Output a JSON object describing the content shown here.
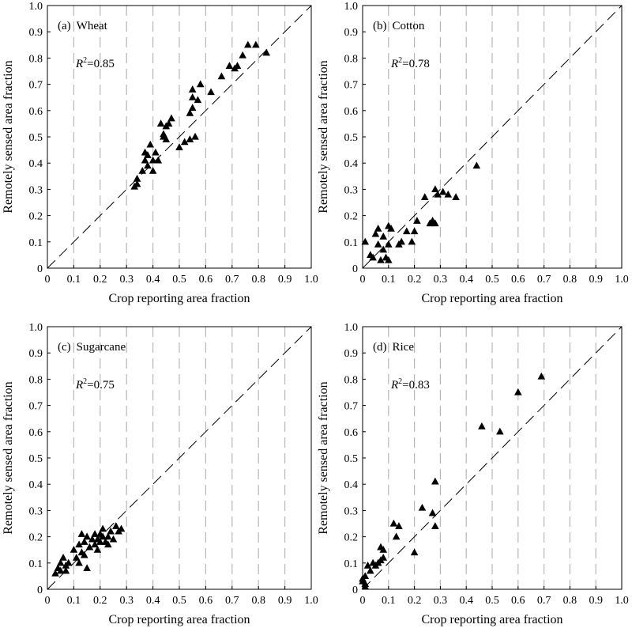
{
  "chart_data": [
    {
      "type": "scatter",
      "panel_label": "(a)",
      "title": "Wheat",
      "annotation": {
        "symbol": "R",
        "superscript": "2",
        "value": "=0.85"
      },
      "xlabel": "Crop reporting area fraction",
      "ylabel": "Remotely sensed area fraction",
      "xlim": [
        0,
        1.0
      ],
      "ylim": [
        0,
        1.0
      ],
      "xticks": [
        "0",
        "0.1",
        "0.2",
        "0.3",
        "0.4",
        "0.5",
        "0.6",
        "0.7",
        "0.8",
        "0.9",
        "1.0"
      ],
      "yticks": [
        "0",
        "0.1",
        "0.2",
        "0.3",
        "0.4",
        "0.5",
        "0.6",
        "0.7",
        "0.8",
        "0.9",
        "1.0"
      ],
      "grid": "vertical-dashed",
      "reference_line": "1:1 dashed",
      "marker": "triangle",
      "points": [
        [
          0.33,
          0.31
        ],
        [
          0.34,
          0.32
        ],
        [
          0.34,
          0.34
        ],
        [
          0.36,
          0.37
        ],
        [
          0.37,
          0.41
        ],
        [
          0.37,
          0.44
        ],
        [
          0.38,
          0.39
        ],
        [
          0.38,
          0.43
        ],
        [
          0.39,
          0.47
        ],
        [
          0.4,
          0.37
        ],
        [
          0.4,
          0.41
        ],
        [
          0.41,
          0.44
        ],
        [
          0.42,
          0.41
        ],
        [
          0.43,
          0.55
        ],
        [
          0.44,
          0.5
        ],
        [
          0.44,
          0.51
        ],
        [
          0.45,
          0.49
        ],
        [
          0.45,
          0.54
        ],
        [
          0.46,
          0.55
        ],
        [
          0.47,
          0.57
        ],
        [
          0.5,
          0.46
        ],
        [
          0.52,
          0.48
        ],
        [
          0.54,
          0.49
        ],
        [
          0.54,
          0.59
        ],
        [
          0.55,
          0.61
        ],
        [
          0.55,
          0.65
        ],
        [
          0.55,
          0.68
        ],
        [
          0.56,
          0.5
        ],
        [
          0.57,
          0.64
        ],
        [
          0.58,
          0.7
        ],
        [
          0.62,
          0.67
        ],
        [
          0.66,
          0.73
        ],
        [
          0.69,
          0.77
        ],
        [
          0.71,
          0.76
        ],
        [
          0.72,
          0.77
        ],
        [
          0.74,
          0.81
        ],
        [
          0.76,
          0.85
        ],
        [
          0.79,
          0.85
        ],
        [
          0.83,
          0.82
        ]
      ]
    },
    {
      "type": "scatter",
      "panel_label": "(b)",
      "title": "Cotton",
      "annotation": {
        "symbol": "R",
        "superscript": "2",
        "value": "=0.78"
      },
      "xlabel": "Crop reporting area fraction",
      "ylabel": "Remotely sensed area fraction",
      "xlim": [
        0,
        1.0
      ],
      "ylim": [
        0,
        1.0
      ],
      "xticks": [
        "0",
        "0.1",
        "0.2",
        "0.3",
        "0.4",
        "0.5",
        "0.6",
        "0.7",
        "0.8",
        "0.9",
        "1.0"
      ],
      "yticks": [
        "0",
        "0.1",
        "0.2",
        "0.3",
        "0.4",
        "0.5",
        "0.6",
        "0.7",
        "0.8",
        "0.9",
        "1.0"
      ],
      "grid": "vertical-dashed",
      "reference_line": "1:1 dashed",
      "marker": "triangle",
      "points": [
        [
          0.01,
          0.1
        ],
        [
          0.03,
          0.05
        ],
        [
          0.04,
          0.04
        ],
        [
          0.05,
          0.13
        ],
        [
          0.06,
          0.09
        ],
        [
          0.06,
          0.15
        ],
        [
          0.07,
          0.03
        ],
        [
          0.08,
          0.07
        ],
        [
          0.08,
          0.12
        ],
        [
          0.09,
          0.04
        ],
        [
          0.1,
          0.03
        ],
        [
          0.1,
          0.09
        ],
        [
          0.1,
          0.16
        ],
        [
          0.11,
          0.15
        ],
        [
          0.14,
          0.09
        ],
        [
          0.15,
          0.1
        ],
        [
          0.17,
          0.14
        ],
        [
          0.19,
          0.1
        ],
        [
          0.2,
          0.14
        ],
        [
          0.21,
          0.18
        ],
        [
          0.24,
          0.27
        ],
        [
          0.26,
          0.17
        ],
        [
          0.27,
          0.18
        ],
        [
          0.28,
          0.17
        ],
        [
          0.28,
          0.3
        ],
        [
          0.29,
          0.28
        ],
        [
          0.31,
          0.29
        ],
        [
          0.33,
          0.28
        ],
        [
          0.36,
          0.27
        ],
        [
          0.44,
          0.39
        ]
      ]
    },
    {
      "type": "scatter",
      "panel_label": "(c)",
      "title": "Sugarcane",
      "annotation": {
        "symbol": "R",
        "superscript": "2",
        "value": "=0.75"
      },
      "xlabel": "Crop reporting area fraction",
      "ylabel": "Remotely sensed area fraction",
      "xlim": [
        0,
        1.0
      ],
      "ylim": [
        0,
        1.0
      ],
      "xticks": [
        "0",
        "0.1",
        "0.2",
        "0.3",
        "0.4",
        "0.5",
        "0.6",
        "0.7",
        "0.8",
        "0.9",
        "1.0"
      ],
      "yticks": [
        "0",
        "0.1",
        "0.2",
        "0.3",
        "0.4",
        "0.5",
        "0.6",
        "0.7",
        "0.8",
        "0.9",
        "1.0"
      ],
      "grid": "vertical-dashed",
      "reference_line": "1:1 dashed",
      "marker": "triangle",
      "points": [
        [
          0.03,
          0.06
        ],
        [
          0.04,
          0.08
        ],
        [
          0.05,
          0.07
        ],
        [
          0.05,
          0.1
        ],
        [
          0.06,
          0.12
        ],
        [
          0.07,
          0.07
        ],
        [
          0.07,
          0.09
        ],
        [
          0.08,
          0.1
        ],
        [
          0.1,
          0.15
        ],
        [
          0.11,
          0.12
        ],
        [
          0.12,
          0.1
        ],
        [
          0.12,
          0.17
        ],
        [
          0.13,
          0.14
        ],
        [
          0.13,
          0.21
        ],
        [
          0.14,
          0.13
        ],
        [
          0.14,
          0.18
        ],
        [
          0.15,
          0.08
        ],
        [
          0.15,
          0.2
        ],
        [
          0.16,
          0.16
        ],
        [
          0.17,
          0.19
        ],
        [
          0.18,
          0.17
        ],
        [
          0.18,
          0.21
        ],
        [
          0.19,
          0.15
        ],
        [
          0.19,
          0.19
        ],
        [
          0.2,
          0.18
        ],
        [
          0.2,
          0.21
        ],
        [
          0.21,
          0.2
        ],
        [
          0.21,
          0.23
        ],
        [
          0.22,
          0.18
        ],
        [
          0.23,
          0.17
        ],
        [
          0.23,
          0.2
        ],
        [
          0.24,
          0.22
        ],
        [
          0.25,
          0.19
        ],
        [
          0.26,
          0.24
        ],
        [
          0.27,
          0.22
        ],
        [
          0.28,
          0.23
        ]
      ]
    },
    {
      "type": "scatter",
      "panel_label": "(d)",
      "title": "Rice",
      "annotation": {
        "symbol": "R",
        "superscript": "2",
        "value": "=0.83"
      },
      "xlabel": "Crop reporting area fraction",
      "ylabel": "Remotely sensed area fraction",
      "xlim": [
        0,
        1.0
      ],
      "ylim": [
        0,
        1.0
      ],
      "xticks": [
        "0",
        "0.1",
        "0.2",
        "0.3",
        "0.4",
        "0.5",
        "0.6",
        "0.7",
        "0.8",
        "0.9",
        "1.0"
      ],
      "yticks": [
        "0",
        "0.1",
        "0.2",
        "0.3",
        "0.4",
        "0.5",
        "0.6",
        "0.7",
        "0.8",
        "0.9",
        "1.0"
      ],
      "grid": "vertical-dashed",
      "reference_line": "1:1 dashed",
      "marker": "triangle",
      "points": [
        [
          0.0,
          0.03
        ],
        [
          0.0,
          0.04
        ],
        [
          0.01,
          0.01
        ],
        [
          0.01,
          0.02
        ],
        [
          0.01,
          0.05
        ],
        [
          0.02,
          0.09
        ],
        [
          0.03,
          0.07
        ],
        [
          0.04,
          0.1
        ],
        [
          0.05,
          0.09
        ],
        [
          0.06,
          0.1
        ],
        [
          0.07,
          0.16
        ],
        [
          0.07,
          0.11
        ],
        [
          0.08,
          0.15
        ],
        [
          0.08,
          0.12
        ],
        [
          0.12,
          0.25
        ],
        [
          0.13,
          0.2
        ],
        [
          0.14,
          0.24
        ],
        [
          0.2,
          0.14
        ],
        [
          0.23,
          0.31
        ],
        [
          0.27,
          0.29
        ],
        [
          0.28,
          0.24
        ],
        [
          0.28,
          0.41
        ],
        [
          0.46,
          0.62
        ],
        [
          0.53,
          0.6
        ],
        [
          0.6,
          0.75
        ],
        [
          0.69,
          0.81
        ]
      ]
    }
  ]
}
